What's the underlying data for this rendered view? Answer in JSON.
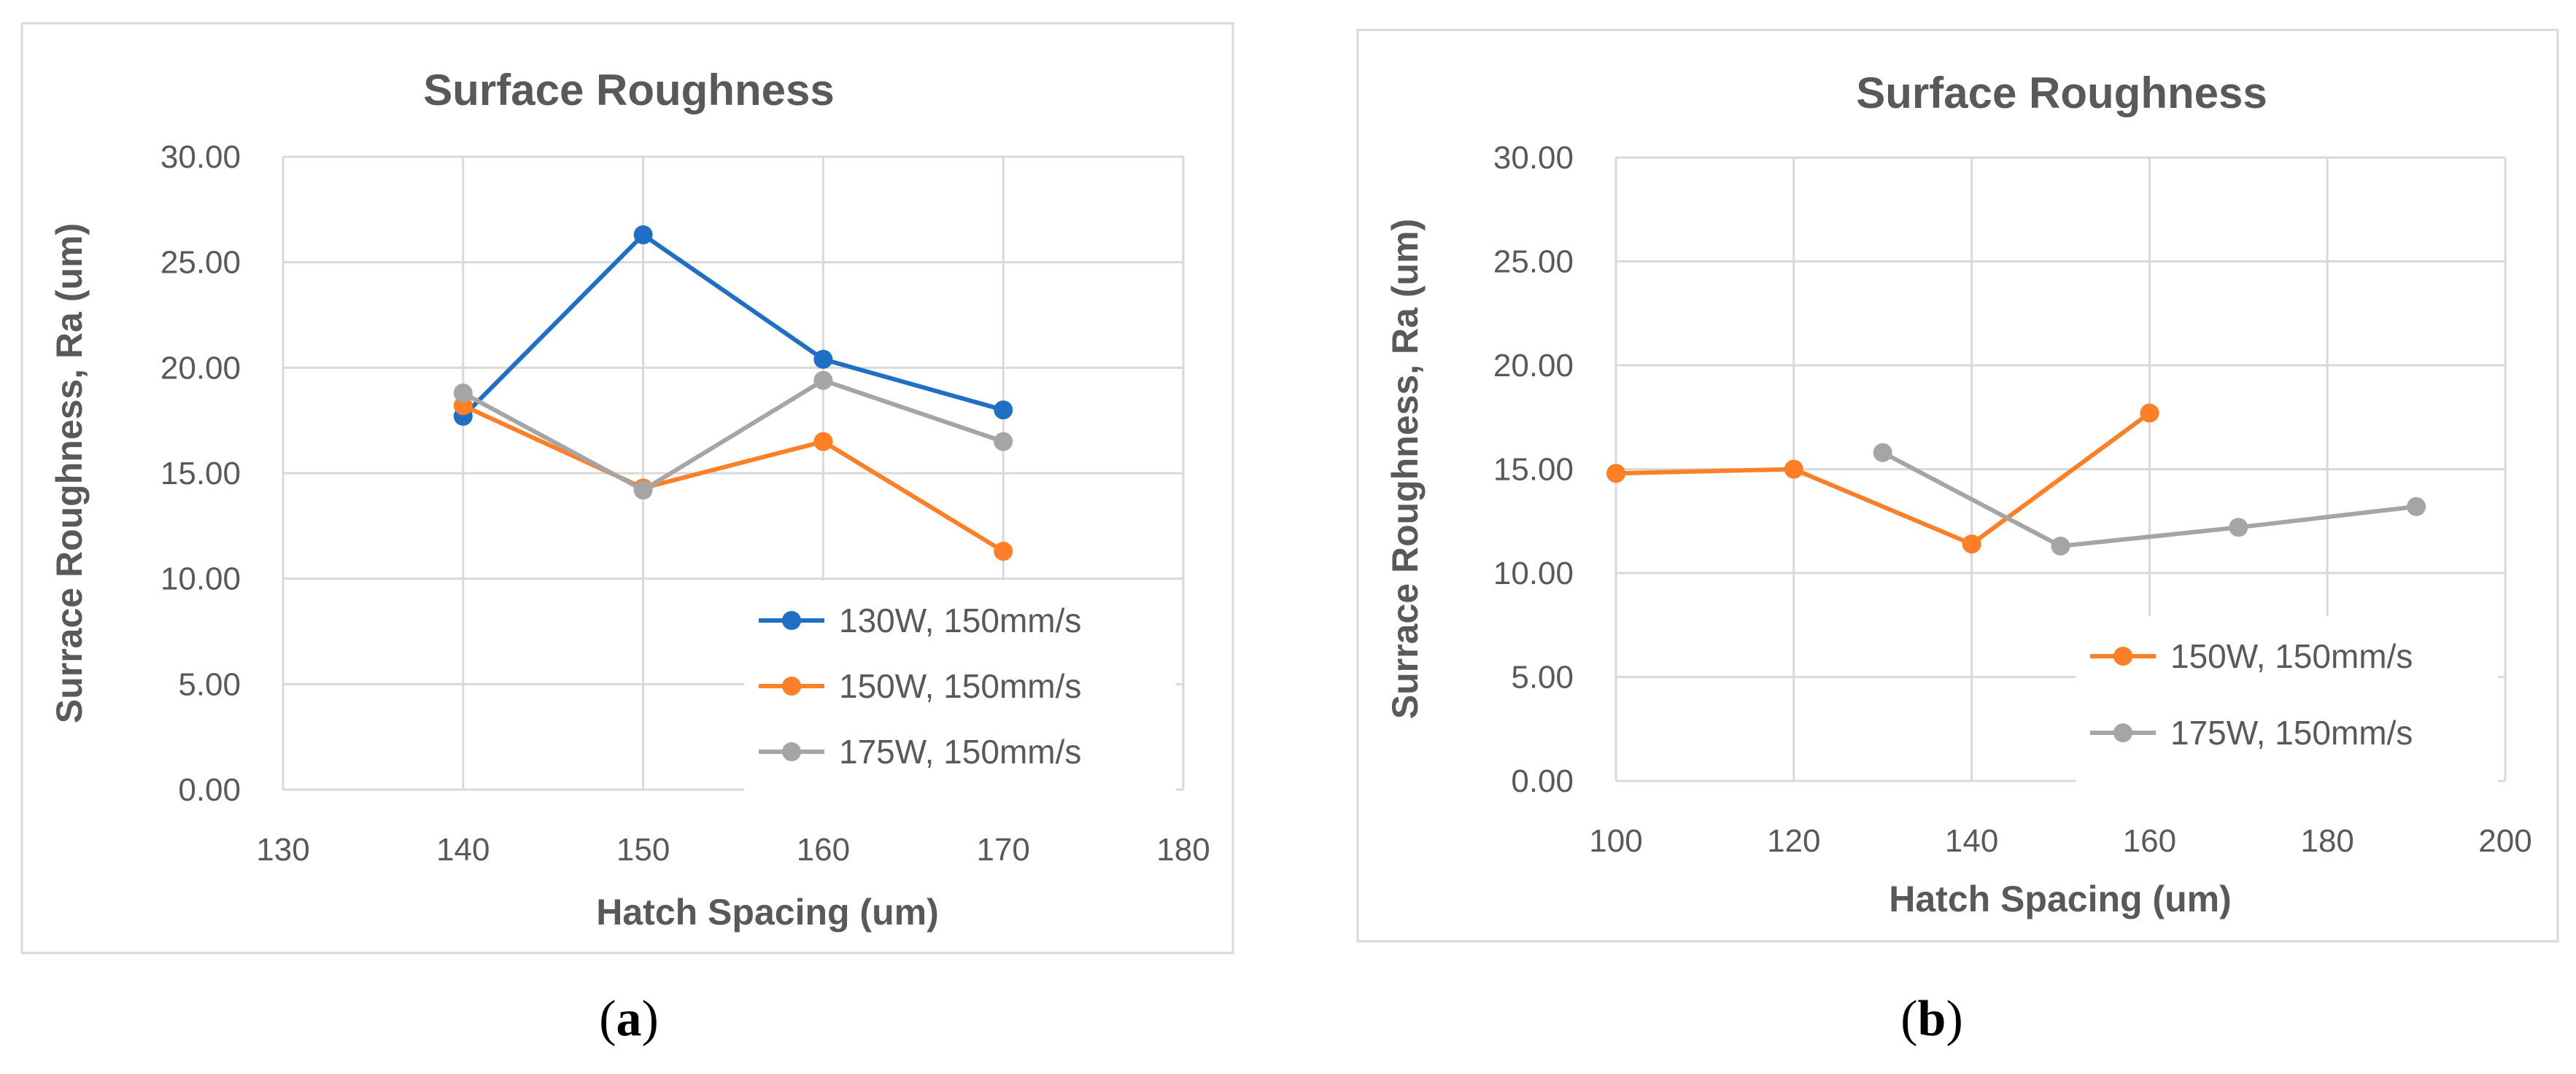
{
  "chart_data": [
    {
      "type": "line",
      "panel_label": "a",
      "title": "Surface Roughness",
      "xlabel": "Hatch Spacing (um)",
      "ylabel": "Surrace Roughness, Ra (um)",
      "xlim": [
        130,
        180
      ],
      "ylim": [
        0,
        30
      ],
      "x_ticks": [
        130,
        140,
        150,
        160,
        170,
        180
      ],
      "y_ticks": [
        "0.00",
        "5.00",
        "10.00",
        "15.00",
        "20.00",
        "25.00",
        "30.00"
      ],
      "grid": true,
      "legend_position": "bottom-right",
      "series": [
        {
          "name": "130W, 150mm/s",
          "color": "#1f6fc5",
          "x": [
            140,
            150,
            160,
            170
          ],
          "y": [
            17.7,
            26.3,
            20.4,
            18.0
          ]
        },
        {
          "name": "150W, 150mm/s",
          "color": "#ff7f27",
          "x": [
            140,
            150,
            160,
            170
          ],
          "y": [
            18.2,
            14.3,
            16.5,
            11.3
          ]
        },
        {
          "name": "175W, 150mm/s",
          "color": "#a5a5a5",
          "x": [
            140,
            150,
            160,
            170
          ],
          "y": [
            18.8,
            14.2,
            19.4,
            16.5
          ]
        }
      ]
    },
    {
      "type": "line",
      "panel_label": "b",
      "title": "Surface Roughness",
      "xlabel": "Hatch Spacing (um)",
      "ylabel": "Surrace Roughness, Ra (um)",
      "xlim": [
        100,
        200
      ],
      "ylim": [
        0,
        30
      ],
      "x_ticks": [
        100,
        120,
        140,
        160,
        180,
        200
      ],
      "y_ticks": [
        "0.00",
        "5.00",
        "10.00",
        "15.00",
        "20.00",
        "25.00",
        "30.00"
      ],
      "grid": true,
      "legend_position": "bottom-right",
      "series": [
        {
          "name": "150W, 150mm/s",
          "color": "#ff7f27",
          "x": [
            100,
            120,
            140,
            160
          ],
          "y": [
            14.8,
            15.0,
            11.4,
            17.7
          ]
        },
        {
          "name": "175W, 150mm/s",
          "color": "#a5a5a5",
          "x": [
            130,
            150,
            170,
            190
          ],
          "y": [
            15.8,
            11.3,
            12.2,
            13.2
          ]
        }
      ]
    }
  ]
}
